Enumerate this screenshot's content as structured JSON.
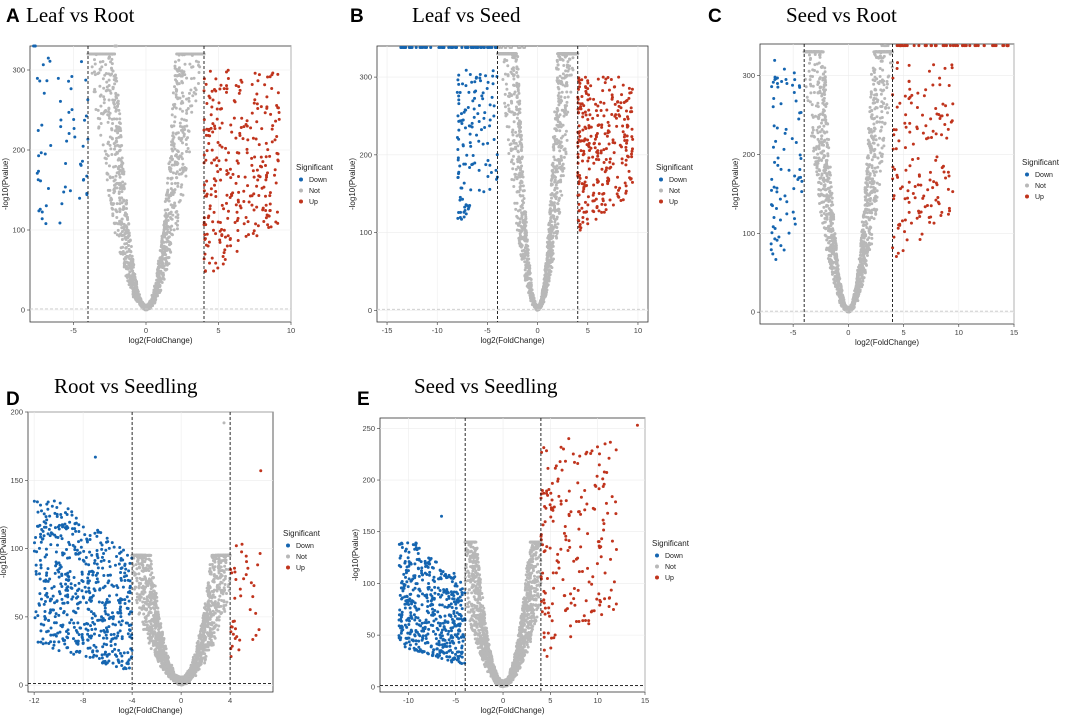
{
  "figure": {
    "legend_title": "Significant",
    "legend_entries": [
      {
        "label": "Down",
        "color": "#1565b0"
      },
      {
        "label": "Not",
        "color": "#b8b8b8"
      },
      {
        "label": "Up",
        "color": "#c0341d"
      }
    ],
    "xlabel": "log2(FoldChange)",
    "ylabel": "-log10(Pvalue)"
  },
  "chart_data": [
    {
      "panel": "A",
      "type": "scatter",
      "title": "Leaf vs Root",
      "xlabel": "log2(FoldChange)",
      "ylabel": "-log10(Pvalue)",
      "xlim": [
        -8,
        10
      ],
      "ylim": [
        -15,
        330
      ],
      "xticks": [
        -5,
        0,
        5,
        10
      ],
      "yticks": [
        0,
        100,
        200,
        300
      ],
      "vlines": [
        -4,
        4
      ],
      "hline": 1.3,
      "cap_value": 330,
      "clouds": [
        {
          "series": "Not",
          "n": 1900,
          "x_range": [
            -4,
            4
          ],
          "shape": "v",
          "y_scale": 60,
          "y_max": 320,
          "seed": 11
        },
        {
          "series": "Up",
          "n": 300,
          "x_range": [
            4,
            9.2
          ],
          "y_range": [
            40,
            300
          ],
          "seed": 12
        },
        {
          "series": "Down",
          "n": 60,
          "x_range": [
            -7.5,
            -4
          ],
          "y_range": [
            80,
            320
          ],
          "seed": 13
        }
      ],
      "capped_points": [
        {
          "series": "Down",
          "x_range": [
            -7.8,
            -7.2
          ],
          "n": 4
        },
        {
          "series": "Not",
          "x_range": [
            -2.2,
            -1.6
          ],
          "n": 3
        }
      ]
    },
    {
      "panel": "B",
      "type": "scatter",
      "title": "Leaf vs Seed",
      "xlabel": "log2(FoldChange)",
      "ylabel": "-log10(Pvalue)",
      "xlim": [
        -16,
        11
      ],
      "ylim": [
        -15,
        340
      ],
      "xticks": [
        -15,
        -10,
        -5,
        0,
        5,
        10
      ],
      "yticks": [
        0,
        100,
        200,
        300
      ],
      "vlines": [
        -4,
        4
      ],
      "hline": 1.3,
      "cap_value": 338,
      "clouds": [
        {
          "series": "Not",
          "n": 1900,
          "x_range": [
            -4,
            4
          ],
          "shape": "v",
          "y_scale": 70,
          "y_max": 330,
          "seed": 21
        },
        {
          "series": "Up",
          "n": 300,
          "x_range": [
            4,
            9.5
          ],
          "y_range": [
            100,
            300
          ],
          "seed": 22
        },
        {
          "series": "Down",
          "n": 130,
          "x_range": [
            -8,
            -4
          ],
          "y_range": [
            110,
            310
          ],
          "seed": 23
        }
      ],
      "capped_points": [
        {
          "series": "Down",
          "x_range": [
            -14,
            -4
          ],
          "n": 60
        },
        {
          "series": "Not",
          "x_range": [
            -4,
            -1
          ],
          "n": 12
        }
      ]
    },
    {
      "panel": "C",
      "type": "scatter",
      "title": "Seed vs Root",
      "xlabel": "log2(FoldChange)",
      "ylabel": "-log10(Pvalue)",
      "xlim": [
        -8,
        15
      ],
      "ylim": [
        -15,
        340
      ],
      "xticks": [
        -5,
        0,
        5,
        10,
        15
      ],
      "yticks": [
        0,
        100,
        200,
        300
      ],
      "vlines": [
        -4,
        4
      ],
      "hline": 1.3,
      "cap_value": 338,
      "clouds": [
        {
          "series": "Not",
          "n": 1900,
          "x_range": [
            -4,
            4
          ],
          "shape": "v",
          "y_scale": 55,
          "y_max": 330,
          "seed": 31
        },
        {
          "series": "Up",
          "n": 150,
          "x_range": [
            4,
            9.5
          ],
          "y_range": [
            60,
            320
          ],
          "seed": 32
        },
        {
          "series": "Down",
          "n": 80,
          "x_range": [
            -7,
            -4
          ],
          "y_range": [
            50,
            320
          ],
          "seed": 33
        }
      ],
      "capped_points": [
        {
          "series": "Up",
          "x_range": [
            4,
            14.8
          ],
          "n": 50
        },
        {
          "series": "Not",
          "x_range": [
            3,
            4
          ],
          "n": 6
        }
      ]
    },
    {
      "panel": "D",
      "type": "scatter",
      "title": "Root vs Seedling",
      "xlabel": "log2(FoldChange)",
      "ylabel": "-log10(Pvalue)",
      "xlim": [
        -12.5,
        7.5
      ],
      "ylim": [
        -5,
        200
      ],
      "xticks": [
        -12,
        -8,
        -4,
        0,
        4
      ],
      "yticks": [
        0,
        50,
        100,
        150,
        200
      ],
      "vlines": [
        -4,
        4
      ],
      "hline": 1.3,
      "clouds": [
        {
          "series": "Not",
          "n": 1900,
          "x_range": [
            -4,
            4
          ],
          "shape": "v",
          "y_scale": 12,
          "y_max": 95,
          "seed": 41
        },
        {
          "series": "Down",
          "n": 600,
          "x_range": [
            -12,
            -4
          ],
          "shape": "down-slope",
          "y_range": [
            10,
            135
          ],
          "seed": 42
        },
        {
          "series": "Up",
          "n": 40,
          "x_range": [
            4,
            6.5
          ],
          "y_range": [
            15,
            105
          ],
          "seed": 43
        }
      ],
      "extra_points": [
        {
          "series": "Up",
          "x": 6.5,
          "y": 157
        },
        {
          "series": "Down",
          "x": -7.0,
          "y": 167
        },
        {
          "series": "Not",
          "x": 3.5,
          "y": 192
        }
      ]
    },
    {
      "panel": "E",
      "type": "scatter",
      "title": "Seed vs Seedling",
      "xlabel": "log2(FoldChange)",
      "ylabel": "-log10(Pvalue)",
      "xlim": [
        -13,
        15
      ],
      "ylim": [
        -5,
        260
      ],
      "xticks": [
        -10,
        -5,
        0,
        5,
        10,
        15
      ],
      "yticks": [
        0,
        50,
        100,
        150,
        200,
        250
      ],
      "vlines": [
        -4,
        4
      ],
      "hline": 1.3,
      "clouds": [
        {
          "series": "Not",
          "n": 1900,
          "x_range": [
            -4,
            4
          ],
          "shape": "v",
          "y_scale": 14,
          "y_max": 140,
          "seed": 51
        },
        {
          "series": "Down",
          "n": 500,
          "x_range": [
            -11,
            -4
          ],
          "shape": "down-slope",
          "y_range": [
            20,
            140
          ],
          "seed": 52
        },
        {
          "series": "Up",
          "n": 200,
          "x_range": [
            4,
            12
          ],
          "y_range": [
            20,
            240
          ],
          "seed": 53
        }
      ],
      "extra_points": [
        {
          "series": "Up",
          "x": 14.2,
          "y": 253
        },
        {
          "series": "Down",
          "x": -6.5,
          "y": 165
        }
      ]
    }
  ]
}
